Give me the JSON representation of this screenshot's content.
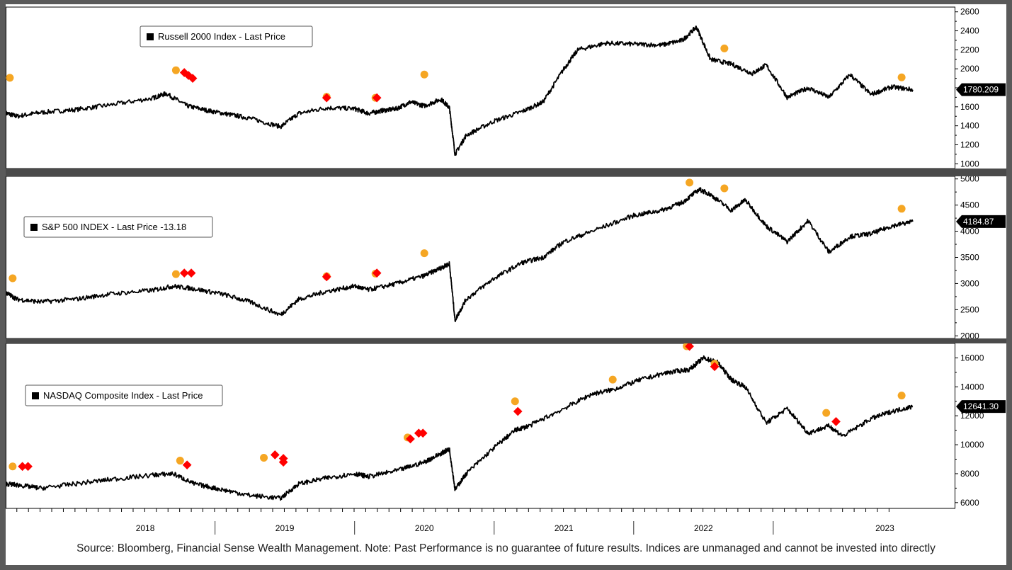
{
  "chart_data": [
    {
      "type": "line",
      "id": "russell",
      "legend": "Russell 2000 Index - Last Price",
      "last_value_label": "1780.209",
      "ylim": [
        950,
        2650
      ],
      "yticks": [
        1000,
        1200,
        1400,
        1600,
        1800,
        2000,
        2200,
        2400,
        2600
      ],
      "ytick_labels": [
        "1000",
        "1200",
        "1400",
        "1600",
        "1800",
        "2000",
        "2200",
        "2400",
        "2600"
      ],
      "series": [
        {
          "name": "Russell 2000 Index",
          "x": [
            2017.0,
            2017.08,
            2017.25,
            2017.5,
            2017.75,
            2018.05,
            2018.15,
            2018.3,
            2018.45,
            2018.6,
            2018.75,
            2018.97,
            2019.1,
            2019.3,
            2019.5,
            2019.6,
            2019.7,
            2019.8,
            2019.9,
            2020.0,
            2020.12,
            2020.18,
            2020.22,
            2020.3,
            2020.5,
            2020.7,
            2020.85,
            2021.0,
            2021.1,
            2021.3,
            2021.5,
            2021.7,
            2021.85,
            2021.95,
            2022.05,
            2022.2,
            2022.35,
            2022.45,
            2022.6,
            2022.75,
            2022.9,
            2023.05,
            2023.2,
            2023.35,
            2023.5
          ],
          "values": [
            1535,
            1500,
            1540,
            1570,
            1620,
            1690,
            1740,
            1610,
            1560,
            1520,
            1480,
            1390,
            1530,
            1590,
            1580,
            1530,
            1560,
            1580,
            1650,
            1610,
            1680,
            1590,
            1100,
            1300,
            1450,
            1550,
            1650,
            2000,
            2200,
            2270,
            2260,
            2250,
            2300,
            2440,
            2100,
            2050,
            1950,
            2040,
            1700,
            1800,
            1700,
            1940,
            1730,
            1810,
            1780
          ]
        }
      ],
      "markers": [
        {
          "shape": "circle",
          "x": 2017.03,
          "y": 1905
        },
        {
          "shape": "circle",
          "x": 2018.22,
          "y": 1985
        },
        {
          "shape": "circle",
          "x": 2019.3,
          "y": 1705
        },
        {
          "shape": "circle",
          "x": 2019.65,
          "y": 1695
        },
        {
          "shape": "circle",
          "x": 2020.0,
          "y": 1940
        },
        {
          "shape": "circle",
          "x": 2022.15,
          "y": 2215
        },
        {
          "shape": "circle",
          "x": 2023.42,
          "y": 1910
        },
        {
          "shape": "diamond",
          "x": 2018.28,
          "y": 1960
        },
        {
          "shape": "diamond",
          "x": 2018.31,
          "y": 1930
        },
        {
          "shape": "diamond",
          "x": 2018.34,
          "y": 1900
        },
        {
          "shape": "diamond",
          "x": 2019.3,
          "y": 1695
        },
        {
          "shape": "diamond",
          "x": 2019.66,
          "y": 1695
        }
      ]
    },
    {
      "type": "line",
      "id": "spx",
      "legend": "S&P 500 INDEX - Last Price   -13.18",
      "last_value_label": "4184.87",
      "ylim": [
        1950,
        5050
      ],
      "yticks": [
        2000,
        2500,
        3000,
        3500,
        4000,
        4500,
        5000
      ],
      "ytick_labels": [
        "2000",
        "2500",
        "3000",
        "3500",
        "4000",
        "4500",
        "5000"
      ],
      "series": [
        {
          "name": "S&P 500 INDEX",
          "x": [
            2017.0,
            2017.08,
            2017.25,
            2017.5,
            2017.75,
            2018.05,
            2018.2,
            2018.35,
            2018.55,
            2018.75,
            2018.97,
            2019.1,
            2019.3,
            2019.5,
            2019.6,
            2019.8,
            2020.0,
            2020.12,
            2020.18,
            2020.22,
            2020.3,
            2020.5,
            2020.7,
            2020.85,
            2021.0,
            2021.2,
            2021.5,
            2021.7,
            2021.85,
            2021.97,
            2022.05,
            2022.2,
            2022.3,
            2022.45,
            2022.6,
            2022.75,
            2022.9,
            2023.05,
            2023.2,
            2023.35,
            2023.5
          ],
          "values": [
            2830,
            2700,
            2650,
            2700,
            2800,
            2870,
            2950,
            2900,
            2800,
            2650,
            2400,
            2700,
            2850,
            2950,
            2880,
            3000,
            3150,
            3300,
            3380,
            2300,
            2700,
            3100,
            3400,
            3500,
            3800,
            4000,
            4300,
            4400,
            4550,
            4800,
            4700,
            4400,
            4600,
            4100,
            3800,
            4200,
            3600,
            3900,
            3950,
            4100,
            4185
          ]
        }
      ],
      "markers": [
        {
          "shape": "circle",
          "x": 2017.05,
          "y": 3100
        },
        {
          "shape": "circle",
          "x": 2018.22,
          "y": 3180
        },
        {
          "shape": "circle",
          "x": 2019.3,
          "y": 3140
        },
        {
          "shape": "circle",
          "x": 2019.65,
          "y": 3190
        },
        {
          "shape": "circle",
          "x": 2020.0,
          "y": 3580
        },
        {
          "shape": "circle",
          "x": 2021.9,
          "y": 4930
        },
        {
          "shape": "circle",
          "x": 2022.15,
          "y": 4820
        },
        {
          "shape": "circle",
          "x": 2023.42,
          "y": 4430
        },
        {
          "shape": "diamond",
          "x": 2018.28,
          "y": 3200
        },
        {
          "shape": "diamond",
          "x": 2018.33,
          "y": 3200
        },
        {
          "shape": "diamond",
          "x": 2019.3,
          "y": 3130
        },
        {
          "shape": "diamond",
          "x": 2019.66,
          "y": 3200
        }
      ]
    },
    {
      "type": "line",
      "id": "nasdaq",
      "legend": "NASDAQ Composite Index - Last Price",
      "last_value_label": "12641.30",
      "ylim": [
        5600,
        17000
      ],
      "yticks": [
        6000,
        8000,
        10000,
        12000,
        14000,
        16000
      ],
      "ytick_labels": [
        "6000",
        "8000",
        "10000",
        "12000",
        "14000",
        "16000"
      ],
      "series": [
        {
          "name": "NASDAQ Composite Index",
          "x": [
            2017.0,
            2017.1,
            2017.25,
            2017.5,
            2017.75,
            2018.05,
            2018.2,
            2018.35,
            2018.55,
            2018.75,
            2018.97,
            2019.1,
            2019.3,
            2019.5,
            2019.6,
            2019.8,
            2020.0,
            2020.12,
            2020.18,
            2020.22,
            2020.3,
            2020.5,
            2020.65,
            2020.75,
            2021.0,
            2021.2,
            2021.35,
            2021.55,
            2021.75,
            2021.9,
            2022.0,
            2022.1,
            2022.2,
            2022.3,
            2022.45,
            2022.6,
            2022.75,
            2022.9,
            2023.0,
            2023.2,
            2023.35,
            2023.5
          ],
          "values": [
            7300,
            7200,
            7000,
            7300,
            7600,
            7900,
            8000,
            7300,
            6900,
            6500,
            6300,
            7300,
            7700,
            8000,
            7800,
            8200,
            8800,
            9400,
            9700,
            6900,
            8000,
            9800,
            11000,
            11300,
            12500,
            13500,
            13800,
            14500,
            15000,
            15200,
            16000,
            15700,
            14500,
            14000,
            11500,
            12500,
            10800,
            11300,
            10600,
            11800,
            12300,
            12641
          ]
        }
      ],
      "markers": [
        {
          "shape": "circle",
          "x": 2017.05,
          "y": 8500
        },
        {
          "shape": "circle",
          "x": 2018.25,
          "y": 8900
        },
        {
          "shape": "circle",
          "x": 2018.85,
          "y": 9100
        },
        {
          "shape": "circle",
          "x": 2019.88,
          "y": 10500
        },
        {
          "shape": "circle",
          "x": 2020.65,
          "y": 13000
        },
        {
          "shape": "circle",
          "x": 2021.35,
          "y": 14500
        },
        {
          "shape": "circle",
          "x": 2021.88,
          "y": 16900
        },
        {
          "shape": "circle",
          "x": 2022.08,
          "y": 15600
        },
        {
          "shape": "circle",
          "x": 2022.88,
          "y": 12200
        },
        {
          "shape": "circle",
          "x": 2023.42,
          "y": 13400
        },
        {
          "shape": "diamond",
          "x": 2017.12,
          "y": 8500
        },
        {
          "shape": "diamond",
          "x": 2017.16,
          "y": 8500
        },
        {
          "shape": "diamond",
          "x": 2018.3,
          "y": 8600
        },
        {
          "shape": "diamond",
          "x": 2018.93,
          "y": 9300
        },
        {
          "shape": "diamond",
          "x": 2018.99,
          "y": 9050
        },
        {
          "shape": "diamond",
          "x": 2018.99,
          "y": 8800
        },
        {
          "shape": "diamond",
          "x": 2019.9,
          "y": 10400
        },
        {
          "shape": "diamond",
          "x": 2019.96,
          "y": 10800
        },
        {
          "shape": "diamond",
          "x": 2019.99,
          "y": 10800
        },
        {
          "shape": "diamond",
          "x": 2020.67,
          "y": 12300
        },
        {
          "shape": "diamond",
          "x": 2021.9,
          "y": 16800
        },
        {
          "shape": "diamond",
          "x": 2022.08,
          "y": 15400
        },
        {
          "shape": "diamond",
          "x": 2022.95,
          "y": 11600
        }
      ]
    }
  ],
  "xaxis": {
    "labels": [
      "2018",
      "2019",
      "2020",
      "2021",
      "2022",
      "2023"
    ],
    "label_positions": [
      2018.0,
      2019.0,
      2020.0,
      2021.0,
      2022.0,
      2023.3
    ],
    "dividers": [
      2018.5,
      2019.5,
      2020.5,
      2021.5,
      2022.5
    ],
    "range": [
      2017.0,
      2023.8
    ]
  },
  "colors": {
    "line": "#000000",
    "circle": "#F5A623",
    "diamond": "#FF0000",
    "divider": "#555555",
    "label_bg": "#000000"
  },
  "footer": "Source: Bloomberg, Financial Sense Wealth Management. Note: Past Performance is no guarantee of future results. Indices are unmanaged and cannot be invested into directly"
}
